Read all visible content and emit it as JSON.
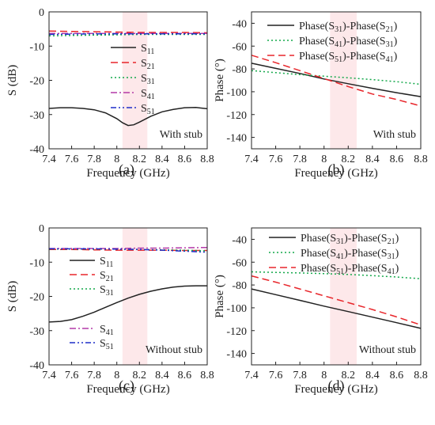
{
  "chart_data": [
    {
      "type": "line",
      "panel_label": "(a)",
      "xlabel": "Frequency (GHz)",
      "ylabel": "S (dB)",
      "xlim": [
        7.4,
        8.8
      ],
      "ylim": [
        -40,
        0
      ],
      "xticks": [
        "7.4",
        "7.6",
        "7.8",
        "8",
        "8.2",
        "8.4",
        "8.6",
        "8.8"
      ],
      "yticks": [
        "0",
        "-10",
        "-20",
        "-30",
        "-40"
      ],
      "annotation": "With stub",
      "shaded_band": [
        8.05,
        8.27
      ],
      "legend_position": "right",
      "series": [
        {
          "name": "S11",
          "base": "S",
          "sub": "11",
          "color": "#222222",
          "dash": "",
          "x": [
            7.4,
            7.5,
            7.6,
            7.7,
            7.8,
            7.9,
            8.0,
            8.05,
            8.1,
            8.15,
            8.2,
            8.3,
            8.4,
            8.5,
            8.6,
            8.7,
            8.8
          ],
          "y": [
            -28.2,
            -28.0,
            -28.0,
            -28.2,
            -28.6,
            -29.5,
            -31.2,
            -32.4,
            -33.2,
            -33.0,
            -32.2,
            -30.5,
            -29.2,
            -28.5,
            -28.0,
            -27.9,
            -28.3
          ]
        },
        {
          "name": "S21",
          "base": "S",
          "sub": "21",
          "color": "#e8262b",
          "dash": "9,5",
          "x": [
            7.4,
            7.6,
            7.8,
            8.0,
            8.2,
            8.4,
            8.6,
            8.8
          ],
          "y": [
            -5.6,
            -5.7,
            -5.8,
            -5.9,
            -6.0,
            -6.0,
            -6.0,
            -6.1
          ]
        },
        {
          "name": "S31",
          "base": "S",
          "sub": "31",
          "color": "#13a84a",
          "dash": "2,3",
          "x": [
            7.4,
            7.6,
            7.8,
            8.0,
            8.2,
            8.4,
            8.6,
            8.8
          ],
          "y": [
            -7.0,
            -6.9,
            -6.8,
            -6.7,
            -6.6,
            -6.6,
            -6.6,
            -6.6
          ]
        },
        {
          "name": "S41",
          "base": "S",
          "sub": "41",
          "color": "#b43aa8",
          "dash": "8,3,2,3",
          "x": [
            7.4,
            7.6,
            7.8,
            8.0,
            8.2,
            8.4,
            8.6,
            8.8
          ],
          "y": [
            -6.3,
            -6.3,
            -6.3,
            -6.3,
            -6.3,
            -6.3,
            -6.3,
            -6.3
          ]
        },
        {
          "name": "S51",
          "base": "S",
          "sub": "51",
          "color": "#1f2fc8",
          "dash": "7,3,2,3,2,3",
          "x": [
            7.4,
            7.6,
            7.8,
            8.0,
            8.2,
            8.4,
            8.6,
            8.8
          ],
          "y": [
            -6.6,
            -6.5,
            -6.4,
            -6.4,
            -6.4,
            -6.4,
            -6.4,
            -6.4
          ]
        }
      ]
    },
    {
      "type": "line",
      "panel_label": "(b)",
      "xlabel": "Frequency (GHz)",
      "ylabel": "Phase (°)",
      "xlim": [
        7.4,
        8.8
      ],
      "ylim": [
        -150,
        -30
      ],
      "xticks": [
        "7.4",
        "7.6",
        "7.8",
        "8",
        "8.2",
        "8.4",
        "8.6",
        "8.8"
      ],
      "yticks": [
        "-40",
        "-60",
        "-80",
        "-100",
        "-120",
        "-140"
      ],
      "annotation": "With stub",
      "shaded_band": [
        8.05,
        8.27
      ],
      "legend_position": "top-right",
      "series": [
        {
          "name": "Phase(S31)-Phase(S21)",
          "a_sub": "31",
          "b_sub": "21",
          "color": "#222222",
          "dash": "",
          "x": [
            7.4,
            7.6,
            7.8,
            8.0,
            8.2,
            8.4,
            8.6,
            8.8
          ],
          "y": [
            -75.0,
            -79.5,
            -84.0,
            -88.8,
            -93.0,
            -97.0,
            -100.8,
            -104.3
          ]
        },
        {
          "name": "Phase(S41)-Phase(S31)",
          "a_sub": "41",
          "b_sub": "31",
          "color": "#13a84a",
          "dash": "2,3",
          "x": [
            7.4,
            7.6,
            7.8,
            8.0,
            8.2,
            8.4,
            8.6,
            8.8
          ],
          "y": [
            -81.5,
            -83.3,
            -85.0,
            -86.4,
            -87.8,
            -89.4,
            -91.2,
            -93.5
          ]
        },
        {
          "name": "Phase(S51)-Phase(S41)",
          "a_sub": "51",
          "b_sub": "41",
          "color": "#e8262b",
          "dash": "9,5",
          "x": [
            7.4,
            7.6,
            7.8,
            8.0,
            8.2,
            8.4,
            8.6,
            8.8
          ],
          "y": [
            -68.0,
            -74.5,
            -81.5,
            -88.5,
            -95.5,
            -102.0,
            -106.8,
            -112.5
          ]
        }
      ]
    },
    {
      "type": "line",
      "panel_label": "(c)",
      "xlabel": "Frequency (GHz)",
      "ylabel": "S (dB)",
      "xlim": [
        7.4,
        8.8
      ],
      "ylim": [
        -40,
        0
      ],
      "xticks": [
        "7.4",
        "7.6",
        "7.8",
        "8",
        "8.2",
        "8.4",
        "8.6",
        "8.8"
      ],
      "yticks": [
        "0",
        "-10",
        "-20",
        "-30",
        "-40"
      ],
      "annotation": "Without stub",
      "shaded_band": [
        8.05,
        8.27
      ],
      "legend_position": "left",
      "series": [
        {
          "name": "S11",
          "base": "S",
          "sub": "11",
          "color": "#222222",
          "dash": "",
          "x": [
            7.4,
            7.5,
            7.6,
            7.7,
            7.8,
            7.9,
            8.0,
            8.1,
            8.2,
            8.3,
            8.4,
            8.5,
            8.6,
            8.7,
            8.8
          ],
          "y": [
            -27.5,
            -27.3,
            -26.8,
            -25.8,
            -24.6,
            -23.2,
            -21.8,
            -20.5,
            -19.4,
            -18.5,
            -17.8,
            -17.3,
            -17.0,
            -16.9,
            -16.9
          ]
        },
        {
          "name": "S21",
          "base": "S",
          "sub": "21",
          "color": "#e8262b",
          "dash": "9,5",
          "x": [
            7.4,
            7.6,
            7.8,
            8.0,
            8.2,
            8.4,
            8.6,
            8.8
          ],
          "y": [
            -6.3,
            -6.3,
            -6.4,
            -6.5,
            -6.5,
            -6.5,
            -6.6,
            -6.6
          ]
        },
        {
          "name": "S31",
          "base": "S",
          "sub": "31",
          "color": "#13a84a",
          "dash": "2,3",
          "x": [
            7.4,
            7.6,
            7.8,
            8.0,
            8.2,
            8.4,
            8.6,
            8.8
          ],
          "y": [
            -6.2,
            -6.2,
            -6.2,
            -6.2,
            -6.3,
            -6.4,
            -6.5,
            -6.7
          ]
        },
        {
          "name": "S41",
          "base": "S",
          "sub": "41",
          "color": "#b43aa8",
          "dash": "8,3,2,3",
          "x": [
            7.4,
            7.6,
            7.8,
            8.0,
            8.2,
            8.4,
            8.6,
            8.8
          ],
          "y": [
            -6.0,
            -6.0,
            -6.0,
            -6.0,
            -5.9,
            -5.9,
            -5.8,
            -5.7
          ]
        },
        {
          "name": "S51",
          "base": "S",
          "sub": "51",
          "color": "#1f2fc8",
          "dash": "7,3,2,3,2,3",
          "x": [
            7.4,
            7.6,
            7.8,
            8.0,
            8.2,
            8.4,
            8.6,
            8.8
          ],
          "y": [
            -6.1,
            -6.1,
            -6.1,
            -6.2,
            -6.3,
            -6.5,
            -6.8,
            -7.1
          ]
        }
      ]
    },
    {
      "type": "line",
      "panel_label": "(d)",
      "xlabel": "Frequency (GHz)",
      "ylabel": "Phase (°)",
      "xlim": [
        7.4,
        8.8
      ],
      "ylim": [
        -150,
        -30
      ],
      "xticks": [
        "7.4",
        "7.6",
        "7.8",
        "8",
        "8.2",
        "8.4",
        "8.6",
        "8.8"
      ],
      "yticks": [
        "-40",
        "-60",
        "-80",
        "-100",
        "-120",
        "-140"
      ],
      "annotation": "Without stub",
      "shaded_band": [
        8.05,
        8.27
      ],
      "legend_position": "top-right",
      "series": [
        {
          "name": "Phase(S31)-Phase(S21)",
          "a_sub": "31",
          "b_sub": "21",
          "color": "#222222",
          "dash": "",
          "x": [
            7.4,
            7.6,
            7.8,
            8.0,
            8.2,
            8.4,
            8.6,
            8.8
          ],
          "y": [
            -83.5,
            -88.5,
            -93.5,
            -98.5,
            -103.3,
            -108.2,
            -113.0,
            -118.0
          ]
        },
        {
          "name": "Phase(S41)-Phase(S31)",
          "a_sub": "41",
          "b_sub": "31",
          "color": "#13a84a",
          "dash": "2,3",
          "x": [
            7.4,
            7.6,
            7.8,
            8.0,
            8.2,
            8.4,
            8.6,
            8.8
          ],
          "y": [
            -68.5,
            -69.0,
            -69.5,
            -70.0,
            -70.8,
            -71.8,
            -73.0,
            -74.5
          ]
        },
        {
          "name": "Phase(S51)-Phase(S41)",
          "a_sub": "51",
          "b_sub": "41",
          "color": "#e8262b",
          "dash": "9,5",
          "x": [
            7.4,
            7.6,
            7.8,
            8.0,
            8.2,
            8.4,
            8.6,
            8.8
          ],
          "y": [
            -72.0,
            -77.5,
            -83.5,
            -89.5,
            -95.5,
            -101.5,
            -108.0,
            -115.0
          ]
        }
      ]
    }
  ],
  "colors": {
    "axis": "#222222",
    "band": "#fde8ea"
  }
}
